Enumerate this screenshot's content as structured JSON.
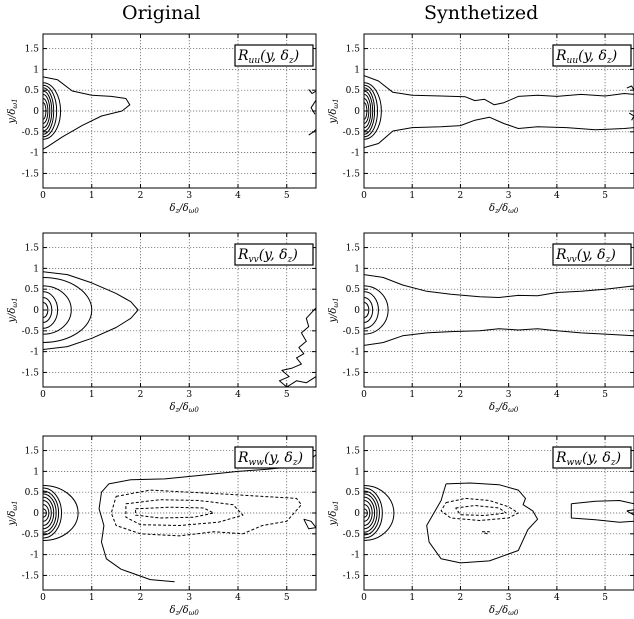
{
  "column_titles": [
    "Original",
    "Synthetized"
  ],
  "chart_data": [
    {
      "type": "contour",
      "column": "Original",
      "row": 0,
      "title": "R_uu(y, δz)",
      "label": {
        "main": "R",
        "sub": "uu",
        "args": "(y, δ",
        "args_sub": "z",
        "close": ")"
      },
      "xlabel": "δz/δω0",
      "ylabel": "y/δω1",
      "xlim": [
        0,
        5.6
      ],
      "ylim": [
        -1.85,
        1.85
      ],
      "xticks": [
        0,
        1,
        2,
        3,
        4,
        5
      ],
      "yticks": [
        -1.5,
        -1,
        -0.5,
        0,
        0.5,
        1,
        1.5
      ],
      "yticklabels": [
        "-1.5",
        "-1",
        "-0.5",
        "0",
        "0.5",
        "1",
        "1.5"
      ],
      "grid": true,
      "contours": [
        {
          "level": 0.9,
          "rx": 0.06,
          "ry": 0.2
        },
        {
          "level": 0.8,
          "rx": 0.1,
          "ry": 0.3
        },
        {
          "level": 0.7,
          "rx": 0.14,
          "ry": 0.4
        },
        {
          "level": 0.6,
          "rx": 0.18,
          "ry": 0.48
        },
        {
          "level": 0.5,
          "rx": 0.22,
          "ry": 0.56
        },
        {
          "level": 0.4,
          "rx": 0.28,
          "ry": 0.62
        },
        {
          "level": 0.3,
          "rx": 0.36,
          "ry": 0.68
        }
      ],
      "lines": [
        {
          "style": "solid",
          "x": [
            0,
            0.3,
            0.6,
            1.0,
            1.4,
            1.7,
            1.78,
            1.62,
            1.2,
            0.8,
            0.4,
            0.1,
            0
          ],
          "y": [
            0.82,
            0.75,
            0.48,
            0.38,
            0.35,
            0.3,
            0.15,
            0.0,
            -0.12,
            -0.35,
            -0.62,
            -0.85,
            -0.92
          ]
        },
        {
          "style": "solid",
          "x": [
            5.45,
            5.52,
            5.6
          ],
          "y": [
            0.52,
            0.42,
            0.48
          ]
        },
        {
          "style": "solid",
          "x": [
            5.6,
            5.5,
            5.58
          ],
          "y": [
            0.26,
            0.08,
            -0.08
          ]
        },
        {
          "style": "solid",
          "x": [
            5.45,
            5.55,
            5.6
          ],
          "y": [
            -0.58,
            -0.5,
            -0.44
          ]
        }
      ]
    },
    {
      "type": "contour",
      "column": "Synthetized",
      "row": 0,
      "title": "R_uu(y, δz)",
      "label": {
        "main": "R",
        "sub": "uu",
        "args": "(y, δ",
        "args_sub": "z",
        "close": ")"
      },
      "xlabel": "δz/δω0",
      "ylabel": "y/δω1",
      "xlim": [
        0,
        5.6
      ],
      "ylim": [
        -1.85,
        1.85
      ],
      "xticks": [
        0,
        1,
        2,
        3,
        4,
        5
      ],
      "yticks": [
        -1.5,
        -1,
        -0.5,
        0,
        0.5,
        1,
        1.5
      ],
      "yticklabels": [
        "-1.5",
        "-1",
        "-0.5",
        "0",
        "0.5",
        "1",
        "1.5"
      ],
      "grid": true,
      "contours": [
        {
          "level": 0.9,
          "rx": 0.06,
          "ry": 0.2
        },
        {
          "level": 0.8,
          "rx": 0.1,
          "ry": 0.3
        },
        {
          "level": 0.7,
          "rx": 0.14,
          "ry": 0.4
        },
        {
          "level": 0.6,
          "rx": 0.18,
          "ry": 0.48
        },
        {
          "level": 0.5,
          "rx": 0.22,
          "ry": 0.56
        },
        {
          "level": 0.4,
          "rx": 0.28,
          "ry": 0.62
        },
        {
          "level": 0.3,
          "rx": 0.36,
          "ry": 0.68
        }
      ],
      "lines": [
        {
          "style": "solid",
          "x": [
            0,
            0.3,
            0.6,
            1.0,
            1.6,
            2.1,
            2.3,
            2.5,
            2.7,
            2.9,
            3.2,
            3.6,
            4.0,
            4.5,
            5.0,
            5.4,
            5.6
          ],
          "y": [
            0.85,
            0.72,
            0.45,
            0.38,
            0.36,
            0.34,
            0.25,
            0.28,
            0.15,
            0.2,
            0.35,
            0.38,
            0.35,
            0.4,
            0.36,
            0.42,
            0.4
          ]
        },
        {
          "style": "solid",
          "x": [
            0,
            0.3,
            0.6,
            1.0,
            1.6,
            2.0,
            2.3,
            2.6,
            2.9,
            3.2,
            3.6,
            4.2,
            4.8,
            5.4,
            5.6
          ],
          "y": [
            -0.88,
            -0.78,
            -0.48,
            -0.4,
            -0.38,
            -0.35,
            -0.22,
            -0.15,
            -0.3,
            -0.42,
            -0.38,
            -0.4,
            -0.45,
            -0.42,
            -0.4
          ]
        },
        {
          "style": "solid",
          "x": [
            5.45,
            5.55,
            5.6
          ],
          "y": [
            0.55,
            0.6,
            0.5
          ]
        },
        {
          "style": "solid",
          "x": [
            5.5,
            5.6,
            5.55
          ],
          "y": [
            -0.05,
            -0.12,
            -0.22
          ]
        }
      ]
    },
    {
      "type": "contour",
      "column": "Original",
      "row": 1,
      "title": "R_vv(y, δz)",
      "label": {
        "main": "R",
        "sub": "vv",
        "args": "(y, δ",
        "args_sub": "z",
        "close": ")"
      },
      "xlabel": "δz/δω0",
      "ylabel": "y/δω1",
      "xlim": [
        0,
        5.6
      ],
      "ylim": [
        -1.85,
        1.85
      ],
      "xticks": [
        0,
        1,
        2,
        3,
        4,
        5
      ],
      "yticks": [
        -1.5,
        -1,
        -0.5,
        0,
        0.5,
        1,
        1.5
      ],
      "yticklabels": [
        "-1.5",
        "-1",
        "-0.5",
        "0",
        "0.5",
        "1",
        "1.5"
      ],
      "grid": true,
      "contours": [
        {
          "level": 0.8,
          "rx": 0.1,
          "ry": 0.18
        },
        {
          "level": 0.6,
          "rx": 0.18,
          "ry": 0.3
        },
        {
          "level": 0.45,
          "rx": 0.3,
          "ry": 0.44
        },
        {
          "level": 0.3,
          "rx": 0.58,
          "ry": 0.58
        },
        {
          "level": 0.15,
          "rx": 1.0,
          "ry": 0.78
        }
      ],
      "lines": [
        {
          "style": "solid",
          "x": [
            0,
            0.5,
            1.0,
            1.5,
            1.8,
            1.95,
            1.8,
            1.5,
            1.0,
            0.5,
            0
          ],
          "y": [
            0.92,
            0.85,
            0.65,
            0.4,
            0.2,
            0.0,
            -0.2,
            -0.42,
            -0.68,
            -0.88,
            -0.95
          ]
        },
        {
          "style": "solid",
          "x": [
            5.6,
            5.4,
            5.45,
            5.3,
            5.4,
            5.25,
            5.35,
            5.2,
            5.3,
            5.1,
            4.9,
            5.05,
            4.85,
            5.0
          ],
          "y": [
            0.05,
            -0.2,
            -0.4,
            -0.55,
            -0.75,
            -0.9,
            -1.05,
            -1.15,
            -1.3,
            -1.4,
            -1.45,
            -1.6,
            -1.7,
            -1.85
          ]
        },
        {
          "style": "solid",
          "x": [
            5.0,
            5.2,
            5.4,
            5.6
          ],
          "y": [
            -1.85,
            -1.7,
            -1.75,
            -1.6
          ]
        }
      ]
    },
    {
      "type": "contour",
      "column": "Synthetized",
      "row": 1,
      "title": "R_vv(y, δz)",
      "label": {
        "main": "R",
        "sub": "vv",
        "args": "(y, δ",
        "args_sub": "z",
        "close": ")"
      },
      "xlabel": "δz/δω0",
      "ylabel": "y/δω1",
      "xlim": [
        0,
        5.6
      ],
      "ylim": [
        -1.85,
        1.85
      ],
      "xticks": [
        0,
        1,
        2,
        3,
        4,
        5
      ],
      "yticks": [
        -1.5,
        -1,
        -0.5,
        0,
        0.5,
        1,
        1.5
      ],
      "yticklabels": [
        "-1.5",
        "-1",
        "-0.5",
        "0",
        "0.5",
        "1",
        "1.5"
      ],
      "grid": true,
      "contours": [
        {
          "level": 0.8,
          "rx": 0.1,
          "ry": 0.18
        },
        {
          "level": 0.6,
          "rx": 0.18,
          "ry": 0.3
        },
        {
          "level": 0.45,
          "rx": 0.3,
          "ry": 0.44
        },
        {
          "level": 0.3,
          "rx": 0.5,
          "ry": 0.58
        }
      ],
      "lines": [
        {
          "style": "solid",
          "x": [
            0,
            0.4,
            0.8,
            1.3,
            1.8,
            2.4,
            2.8,
            3.2,
            3.6,
            4.0,
            4.5,
            5.0,
            5.6
          ],
          "y": [
            0.85,
            0.78,
            0.6,
            0.45,
            0.38,
            0.32,
            0.3,
            0.35,
            0.34,
            0.42,
            0.45,
            0.5,
            0.58
          ]
        },
        {
          "style": "solid",
          "x": [
            0,
            0.4,
            0.8,
            1.3,
            1.8,
            2.4,
            2.8,
            3.2,
            3.6,
            4.0,
            4.5,
            5.0,
            5.6
          ],
          "y": [
            -0.85,
            -0.78,
            -0.62,
            -0.55,
            -0.52,
            -0.5,
            -0.45,
            -0.48,
            -0.45,
            -0.5,
            -0.55,
            -0.58,
            -0.62
          ]
        }
      ]
    },
    {
      "type": "contour",
      "column": "Original",
      "row": 2,
      "title": "R_ww(y, δz)",
      "label": {
        "main": "R",
        "sub": "ww",
        "args": "(y, δ",
        "args_sub": "z",
        "close": ")"
      },
      "xlabel": "δz/δω0",
      "ylabel": "y/δω1",
      "xlim": [
        0,
        5.6
      ],
      "ylim": [
        -1.85,
        1.85
      ],
      "xticks": [
        0,
        1,
        2,
        3,
        4,
        5
      ],
      "yticks": [
        -1.5,
        -1,
        -0.5,
        0,
        0.5,
        1,
        1.5
      ],
      "yticklabels": [
        "-1.5",
        "-1",
        "-0.5",
        "0",
        "0.5",
        "1",
        "1.5"
      ],
      "grid": true,
      "contours": [
        {
          "level": 0.9,
          "rx": 0.07,
          "ry": 0.1
        },
        {
          "level": 0.8,
          "rx": 0.12,
          "ry": 0.2
        },
        {
          "level": 0.7,
          "rx": 0.17,
          "ry": 0.3
        },
        {
          "level": 0.6,
          "rx": 0.22,
          "ry": 0.38
        },
        {
          "level": 0.5,
          "rx": 0.27,
          "ry": 0.46
        },
        {
          "level": 0.4,
          "rx": 0.32,
          "ry": 0.53
        },
        {
          "level": 0.3,
          "rx": 0.38,
          "ry": 0.6
        },
        {
          "level": 0.2,
          "rx": 0.72,
          "ry": 0.66
        }
      ],
      "lines": [
        {
          "style": "solid",
          "x": [
            2.7,
            2.2,
            1.6,
            1.3,
            1.2,
            1.25,
            1.15,
            1.2,
            1.35,
            1.8,
            2.5,
            3.2,
            4.0,
            4.6,
            5.0,
            5.3,
            5.5,
            5.6
          ],
          "y": [
            -1.65,
            -1.6,
            -1.35,
            -1.1,
            -0.7,
            -0.3,
            0.1,
            0.5,
            0.7,
            0.8,
            0.82,
            0.9,
            1.0,
            1.05,
            1.1,
            1.25,
            1.3,
            1.4
          ]
        },
        {
          "style": "solid",
          "x": [
            5.35,
            5.5,
            5.6,
            5.45,
            5.35
          ],
          "y": [
            -0.15,
            -0.2,
            -0.35,
            -0.38,
            -0.15
          ]
        },
        {
          "style": "dashed",
          "x": [
            1.5,
            2.2,
            3.0,
            3.8,
            4.5,
            5.2,
            5.3,
            5.0,
            4.5,
            4.1,
            3.5,
            2.8,
            2.0,
            1.5,
            1.4,
            1.5
          ],
          "y": [
            0.4,
            0.55,
            0.5,
            0.45,
            0.4,
            0.35,
            0.2,
            -0.2,
            -0.3,
            -0.5,
            -0.45,
            -0.55,
            -0.5,
            -0.3,
            0.0,
            0.4
          ]
        },
        {
          "style": "dashed",
          "x": [
            1.7,
            2.4,
            3.2,
            3.9,
            4.1,
            3.6,
            2.8,
            2.0,
            1.7,
            1.7
          ],
          "y": [
            0.22,
            0.32,
            0.3,
            0.2,
            -0.05,
            -0.22,
            -0.3,
            -0.28,
            -0.1,
            0.22
          ]
        },
        {
          "style": "dashed",
          "x": [
            1.9,
            2.6,
            3.3,
            3.5,
            3.1,
            2.4,
            1.9,
            1.9
          ],
          "y": [
            0.1,
            0.14,
            0.12,
            0.0,
            -0.1,
            -0.12,
            -0.05,
            0.1
          ]
        }
      ]
    },
    {
      "type": "contour",
      "column": "Synthetized",
      "row": 2,
      "title": "R_ww(y, δz)",
      "label": {
        "main": "R",
        "sub": "ww",
        "args": "(y, δ",
        "args_sub": "z",
        "close": ")"
      },
      "xlabel": "δz/δω0",
      "ylabel": "y/δω1",
      "xlim": [
        0,
        5.6
      ],
      "ylim": [
        -1.85,
        1.85
      ],
      "xticks": [
        0,
        1,
        2,
        3,
        4,
        5
      ],
      "yticks": [
        -1.5,
        -1,
        -0.5,
        0,
        0.5,
        1,
        1.5
      ],
      "yticklabels": [
        "-1.5",
        "-1",
        "-0.5",
        "0",
        "0.5",
        "1",
        "1.5"
      ],
      "grid": true,
      "contours": [
        {
          "level": 0.9,
          "rx": 0.07,
          "ry": 0.1
        },
        {
          "level": 0.8,
          "rx": 0.12,
          "ry": 0.2
        },
        {
          "level": 0.7,
          "rx": 0.17,
          "ry": 0.3
        },
        {
          "level": 0.6,
          "rx": 0.22,
          "ry": 0.38
        },
        {
          "level": 0.5,
          "rx": 0.27,
          "ry": 0.46
        },
        {
          "level": 0.4,
          "rx": 0.32,
          "ry": 0.53
        },
        {
          "level": 0.3,
          "rx": 0.38,
          "ry": 0.6
        },
        {
          "level": 0.2,
          "rx": 0.62,
          "ry": 0.66
        }
      ],
      "lines": [
        {
          "style": "solid",
          "x": [
            1.7,
            2.2,
            2.8,
            3.2,
            3.35,
            3.3,
            3.5,
            3.6,
            3.4,
            3.2,
            2.6,
            2.0,
            1.6,
            1.35,
            1.3,
            1.45,
            1.6,
            1.7
          ],
          "y": [
            0.7,
            0.72,
            0.68,
            0.55,
            0.35,
            0.2,
            0.05,
            -0.15,
            -0.4,
            -0.9,
            -1.15,
            -1.2,
            -1.1,
            -0.7,
            -0.3,
            0.0,
            0.3,
            0.7
          ]
        },
        {
          "style": "solid",
          "x": [
            4.3,
            4.8,
            5.3,
            5.6,
            5.6,
            5.3,
            4.8,
            4.3,
            4.3
          ],
          "y": [
            0.22,
            0.28,
            0.3,
            0.22,
            -0.2,
            -0.22,
            -0.16,
            -0.12,
            0.22
          ]
        },
        {
          "style": "solid",
          "x": [
            5.45,
            5.6,
            5.6,
            5.45
          ],
          "y": [
            0.05,
            0.08,
            -0.05,
            0.05
          ]
        },
        {
          "style": "dashed",
          "x": [
            1.7,
            2.1,
            2.6,
            3.0,
            3.2,
            3.0,
            2.4,
            1.8,
            1.6,
            1.7
          ],
          "y": [
            0.25,
            0.35,
            0.3,
            0.15,
            0.0,
            -0.12,
            -0.18,
            -0.12,
            0.05,
            0.25
          ]
        },
        {
          "style": "dashed",
          "x": [
            1.9,
            2.3,
            2.8,
            2.95,
            2.5,
            2.0,
            1.9
          ],
          "y": [
            0.12,
            0.18,
            0.12,
            0.0,
            -0.06,
            -0.04,
            0.12
          ]
        },
        {
          "style": "dashed",
          "x": [
            2.45,
            2.6,
            2.55,
            2.45
          ],
          "y": [
            -0.45,
            -0.45,
            -0.5,
            -0.45
          ]
        }
      ]
    }
  ]
}
